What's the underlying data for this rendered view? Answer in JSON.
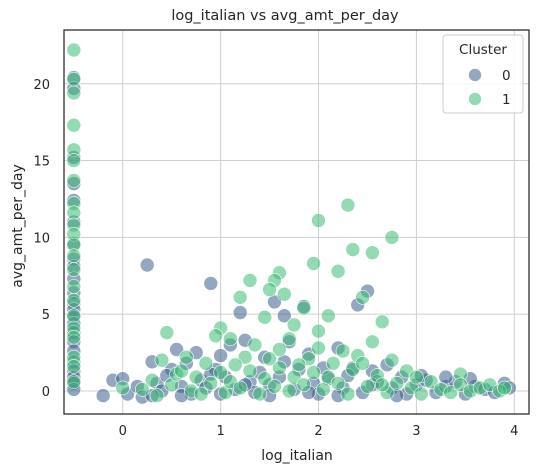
{
  "chart_data": {
    "type": "scatter",
    "title": "log_italian vs avg_amt_per_day",
    "xlabel": "log_italian",
    "ylabel": "avg_amt_per_day",
    "xlim": [
      -0.6,
      4.15
    ],
    "ylim": [
      -1.5,
      23.5
    ],
    "xticks": [
      "0",
      "1",
      "2",
      "3",
      "4"
    ],
    "yticks": [
      "0",
      "5",
      "10",
      "15",
      "20"
    ],
    "grid": true,
    "legend": {
      "title": "Cluster",
      "position": "top-right"
    },
    "colors": {
      "0": "#3b5e8c",
      "1": "#3dbc74"
    },
    "series": [
      {
        "name": "0",
        "color": "#3b5e8c",
        "points": [
          [
            -0.5,
            20.4
          ],
          [
            -0.5,
            19.7
          ],
          [
            -0.5,
            15.2
          ],
          [
            -0.5,
            13.5
          ],
          [
            -0.5,
            12.4
          ],
          [
            -0.5,
            11.0
          ],
          [
            -0.5,
            9.6
          ],
          [
            -0.5,
            8.6
          ],
          [
            -0.5,
            8.1
          ],
          [
            -0.5,
            7.3
          ],
          [
            -0.5,
            6.4
          ],
          [
            -0.5,
            5.7
          ],
          [
            -0.5,
            5.3
          ],
          [
            -0.5,
            4.8
          ],
          [
            -0.5,
            4.4
          ],
          [
            -0.5,
            3.8
          ],
          [
            -0.5,
            3.2
          ],
          [
            -0.5,
            2.6
          ],
          [
            -0.5,
            1.9
          ],
          [
            -0.5,
            1.3
          ],
          [
            -0.5,
            0.9
          ],
          [
            -0.5,
            0.5
          ],
          [
            -0.5,
            0.1
          ],
          [
            0.25,
            8.2
          ],
          [
            0.9,
            7.0
          ],
          [
            0.55,
            2.7
          ],
          [
            0.75,
            2.5
          ],
          [
            0.3,
            1.9
          ],
          [
            0.5,
            1.4
          ],
          [
            0.65,
            1.8
          ],
          [
            1.0,
            2.3
          ],
          [
            1.1,
            3.0
          ],
          [
            1.25,
            3.3
          ],
          [
            1.45,
            2.2
          ],
          [
            1.55,
            5.8
          ],
          [
            1.65,
            4.9
          ],
          [
            1.7,
            3.2
          ],
          [
            1.85,
            5.5
          ],
          [
            1.9,
            2.4
          ],
          [
            2.2,
            2.8
          ],
          [
            2.35,
            1.5
          ],
          [
            2.5,
            6.5
          ],
          [
            2.4,
            5.6
          ],
          [
            2.55,
            1.3
          ],
          [
            2.7,
            1.7
          ],
          [
            1.2,
            5.1
          ],
          [
            0.95,
            1.4
          ],
          [
            -0.2,
            -0.3
          ],
          [
            -0.1,
            0.7
          ],
          [
            0.0,
            0.8
          ],
          [
            0.05,
            -0.2
          ],
          [
            0.15,
            0.3
          ],
          [
            0.2,
            -0.4
          ],
          [
            0.35,
            0.5
          ],
          [
            0.4,
            0.0
          ],
          [
            0.45,
            1.0
          ],
          [
            0.6,
            0.3
          ],
          [
            0.7,
            -0.2
          ],
          [
            0.8,
            0.7
          ],
          [
            0.85,
            0.2
          ],
          [
            1.05,
            0.9
          ],
          [
            1.15,
            0.1
          ],
          [
            1.3,
            0.6
          ],
          [
            1.35,
            -0.1
          ],
          [
            1.4,
            1.2
          ],
          [
            1.5,
            0.4
          ],
          [
            1.6,
            0.9
          ],
          [
            1.75,
            0.1
          ],
          [
            1.8,
            1.4
          ],
          [
            1.95,
            0.5
          ],
          [
            2.0,
            -0.2
          ],
          [
            2.1,
            0.8
          ],
          [
            2.25,
            0.2
          ],
          [
            2.3,
            1.0
          ],
          [
            2.45,
            -0.1
          ],
          [
            2.6,
            0.6
          ],
          [
            2.75,
            0.2
          ],
          [
            2.85,
            0.9
          ],
          [
            2.9,
            -0.2
          ],
          [
            3.0,
            0.4
          ],
          [
            3.1,
            0.7
          ],
          [
            3.2,
            -0.1
          ],
          [
            3.3,
            0.3
          ],
          [
            3.4,
            0.6
          ],
          [
            3.5,
            -0.2
          ],
          [
            3.6,
            0.3
          ],
          [
            3.7,
            0.1
          ],
          [
            3.8,
            -0.1
          ],
          [
            3.9,
            0.5
          ],
          [
            3.95,
            0.2
          ],
          [
            1.0,
            -0.2
          ],
          [
            1.5,
            -0.3
          ],
          [
            2.2,
            -0.3
          ],
          [
            0.6,
            -0.3
          ],
          [
            2.8,
            -0.3
          ],
          [
            3.3,
            0.9
          ],
          [
            2.55,
            0.4
          ],
          [
            1.9,
            -0.1
          ],
          [
            1.25,
            0.4
          ],
          [
            0.3,
            -0.3
          ],
          [
            3.55,
            0.8
          ],
          [
            2.05,
            1.5
          ],
          [
            1.65,
            1.9
          ],
          [
            0.9,
            1.1
          ],
          [
            3.05,
            1.0
          ]
        ]
      },
      {
        "name": "1",
        "color": "#3dbc74",
        "points": [
          [
            -0.5,
            22.2
          ],
          [
            -0.5,
            20.3
          ],
          [
            -0.5,
            19.4
          ],
          [
            -0.5,
            17.3
          ],
          [
            -0.5,
            15.7
          ],
          [
            -0.5,
            15.0
          ],
          [
            -0.5,
            13.7
          ],
          [
            -0.5,
            12.2
          ],
          [
            -0.5,
            11.6
          ],
          [
            -0.5,
            10.8
          ],
          [
            -0.5,
            10.2
          ],
          [
            -0.5,
            9.5
          ],
          [
            -0.5,
            8.8
          ],
          [
            -0.5,
            7.9
          ],
          [
            -0.5,
            6.8
          ],
          [
            -0.5,
            5.9
          ],
          [
            -0.5,
            4.9
          ],
          [
            -0.5,
            4.1
          ],
          [
            -0.5,
            3.5
          ],
          [
            -0.5,
            2.2
          ],
          [
            -0.5,
            1.6
          ],
          [
            -0.5,
            0.6
          ],
          [
            2.3,
            12.1
          ],
          [
            2.0,
            11.1
          ],
          [
            2.75,
            10.0
          ],
          [
            2.35,
            9.2
          ],
          [
            2.55,
            9.0
          ],
          [
            1.95,
            8.3
          ],
          [
            2.2,
            7.8
          ],
          [
            1.6,
            7.7
          ],
          [
            1.3,
            7.2
          ],
          [
            1.55,
            7.2
          ],
          [
            2.45,
            6.1
          ],
          [
            1.5,
            6.6
          ],
          [
            1.65,
            6.3
          ],
          [
            1.2,
            6.1
          ],
          [
            2.1,
            4.9
          ],
          [
            1.85,
            5.4
          ],
          [
            2.65,
            4.5
          ],
          [
            1.45,
            4.8
          ],
          [
            1.75,
            4.3
          ],
          [
            2.0,
            3.9
          ],
          [
            0.45,
            3.8
          ],
          [
            1.0,
            4.1
          ],
          [
            1.1,
            3.4
          ],
          [
            0.95,
            3.6
          ],
          [
            1.35,
            3.0
          ],
          [
            1.7,
            3.4
          ],
          [
            2.25,
            2.6
          ],
          [
            2.55,
            3.2
          ],
          [
            0.65,
            2.2
          ],
          [
            0.4,
            2.0
          ],
          [
            0.85,
            1.8
          ],
          [
            1.25,
            2.2
          ],
          [
            1.6,
            2.7
          ],
          [
            1.9,
            2.1
          ],
          [
            2.15,
            1.8
          ],
          [
            2.4,
            2.3
          ],
          [
            2.75,
            2.0
          ],
          [
            2.9,
            1.3
          ],
          [
            3.45,
            1.1
          ],
          [
            0.3,
            0.7
          ],
          [
            0.35,
            -0.3
          ],
          [
            0.5,
            0.4
          ],
          [
            0.55,
            1.1
          ],
          [
            0.7,
            0.0
          ],
          [
            0.75,
            0.9
          ],
          [
            0.8,
            -0.2
          ],
          [
            0.9,
            0.5
          ],
          [
            1.0,
            1.2
          ],
          [
            1.05,
            -0.1
          ],
          [
            1.1,
            0.6
          ],
          [
            1.2,
            0.2
          ],
          [
            1.3,
            1.3
          ],
          [
            1.4,
            -0.2
          ],
          [
            1.45,
            0.8
          ],
          [
            1.55,
            0.3
          ],
          [
            1.6,
            1.5
          ],
          [
            1.7,
            0.0
          ],
          [
            1.75,
            0.9
          ],
          [
            1.85,
            0.4
          ],
          [
            1.95,
            1.2
          ],
          [
            2.05,
            0.1
          ],
          [
            2.1,
            0.9
          ],
          [
            2.2,
            0.5
          ],
          [
            2.3,
            -0.2
          ],
          [
            2.35,
            1.4
          ],
          [
            2.5,
            0.3
          ],
          [
            2.6,
            1.0
          ],
          [
            2.7,
            -0.1
          ],
          [
            2.8,
            0.5
          ],
          [
            2.95,
            0.2
          ],
          [
            3.05,
            -0.2
          ],
          [
            3.15,
            0.6
          ],
          [
            3.25,
            0.1
          ],
          [
            3.35,
            -0.1
          ],
          [
            3.45,
            0.4
          ],
          [
            3.55,
            0.0
          ],
          [
            3.65,
            0.2
          ],
          [
            3.75,
            0.4
          ],
          [
            3.85,
            0.0
          ],
          [
            3.9,
            0.2
          ],
          [
            1.15,
            1.7
          ],
          [
            0.6,
            1.3
          ],
          [
            2.45,
            1.8
          ],
          [
            1.8,
            1.7
          ],
          [
            0.2,
            0.1
          ],
          [
            0.0,
            0.2
          ],
          [
            3.0,
            0.9
          ],
          [
            2.65,
            0.4
          ],
          [
            1.5,
            2.1
          ],
          [
            2.0,
            2.8
          ]
        ]
      }
    ]
  }
}
